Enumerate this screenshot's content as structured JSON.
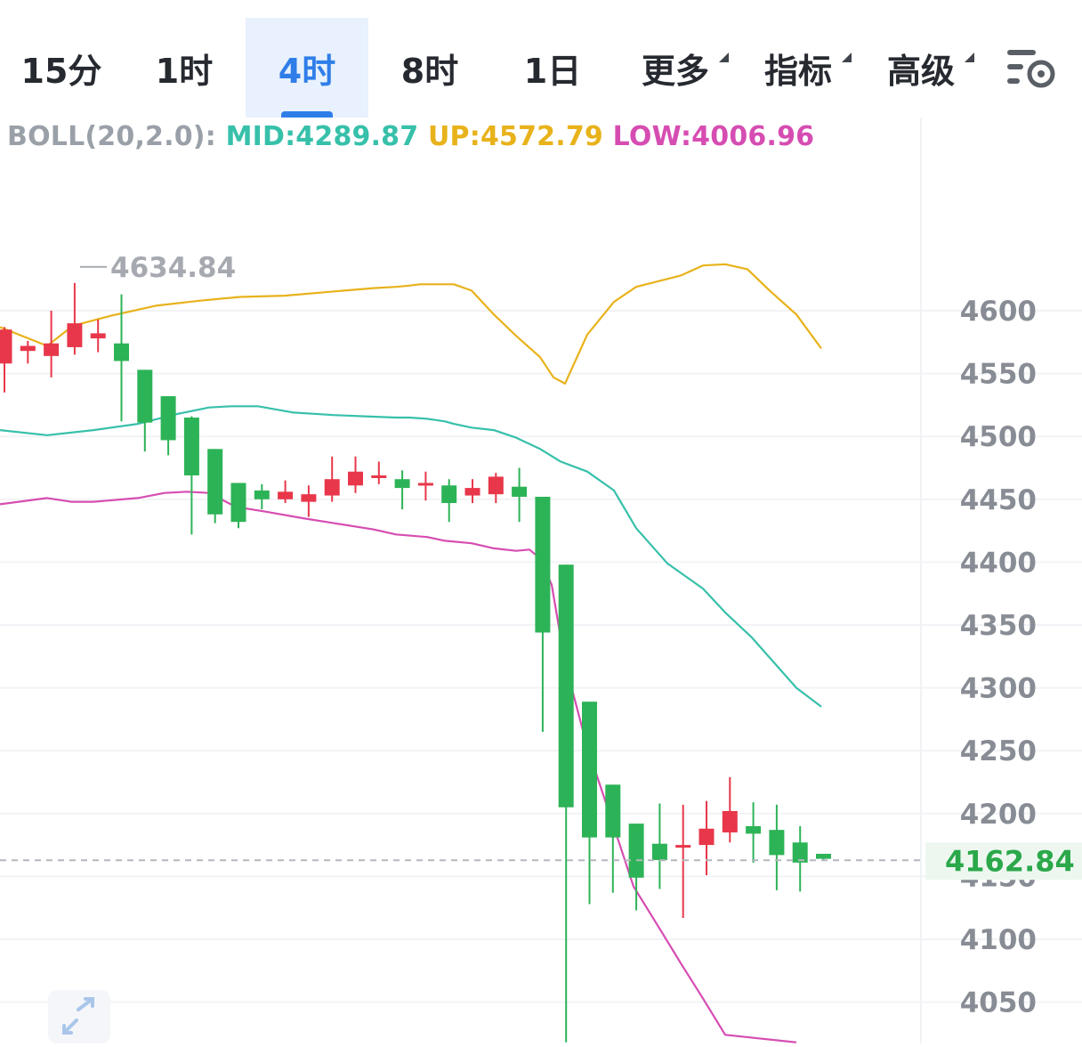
{
  "toolbar": {
    "tabs": [
      {
        "label": "15分",
        "active": false
      },
      {
        "label": "1时",
        "active": false
      },
      {
        "label": "4时",
        "active": true
      },
      {
        "label": "8时",
        "active": false
      },
      {
        "label": "1日",
        "active": false
      },
      {
        "label": "更多",
        "active": false,
        "dropdown": true
      },
      {
        "label": "指标",
        "active": false,
        "dropdown": true
      },
      {
        "label": "高级",
        "active": false,
        "dropdown": true
      }
    ],
    "settings_icon": "chart-settings-icon"
  },
  "legend": {
    "indicator": "BOLL(20,2.0):",
    "mid": "MID:4289.87",
    "up": "UP:4572.79",
    "low": "LOW:4006.96"
  },
  "colors": {
    "rise": "#e8374a",
    "fall": "#2db357",
    "mid": "#37c0aa",
    "up": "#e8b21b",
    "low": "#d64db2",
    "active_tab": "#2f7ee8"
  },
  "chart_data": {
    "type": "candlestick",
    "indicator": "BOLL(20,2.0)",
    "y_ticks": [
      "4600",
      "4550",
      "4500",
      "4450",
      "4400",
      "4350",
      "4300",
      "4250",
      "4200",
      "4150",
      "4100",
      "4050"
    ],
    "ylim": [
      4018,
      4685
    ],
    "max_label": "4634.84",
    "current_price": "4162.84",
    "candles": [
      {
        "o": 4558,
        "h": 4587,
        "l": 4535,
        "c": 4585
      },
      {
        "o": 4568,
        "h": 4576,
        "l": 4558,
        "c": 4572
      },
      {
        "o": 4564,
        "h": 4600,
        "l": 4547,
        "c": 4574
      },
      {
        "o": 4571,
        "h": 4622,
        "l": 4565,
        "c": 4590
      },
      {
        "o": 4578,
        "h": 4593,
        "l": 4567,
        "c": 4582
      },
      {
        "o": 4574,
        "h": 4613,
        "l": 4512,
        "c": 4560
      },
      {
        "o": 4553,
        "h": 4553,
        "l": 4488,
        "c": 4511
      },
      {
        "o": 4532,
        "h": 4532,
        "l": 4485,
        "c": 4497
      },
      {
        "o": 4515,
        "h": 4516,
        "l": 4422,
        "c": 4469
      },
      {
        "o": 4490,
        "h": 4490,
        "l": 4431,
        "c": 4438
      },
      {
        "o": 4463,
        "h": 4463,
        "l": 4427,
        "c": 4432
      },
      {
        "o": 4457,
        "h": 4462,
        "l": 4442,
        "c": 4450
      },
      {
        "o": 4450,
        "h": 4465,
        "l": 4447,
        "c": 4456
      },
      {
        "o": 4448,
        "h": 4461,
        "l": 4436,
        "c": 4454
      },
      {
        "o": 4453,
        "h": 4484,
        "l": 4448,
        "c": 4466
      },
      {
        "o": 4461,
        "h": 4484,
        "l": 4455,
        "c": 4472
      },
      {
        "o": 4468,
        "h": 4480,
        "l": 4462,
        "c": 4469
      },
      {
        "o": 4466,
        "h": 4473,
        "l": 4442,
        "c": 4459
      },
      {
        "o": 4462,
        "h": 4472,
        "l": 4449,
        "c": 4463
      },
      {
        "o": 4461,
        "h": 4466,
        "l": 4432,
        "c": 4447
      },
      {
        "o": 4453,
        "h": 4466,
        "l": 4447,
        "c": 4459
      },
      {
        "o": 4454,
        "h": 4471,
        "l": 4447,
        "c": 4468
      },
      {
        "o": 4460,
        "h": 4475,
        "l": 4432,
        "c": 4452
      },
      {
        "o": 4452,
        "h": 4452,
        "l": 4265,
        "c": 4344
      },
      {
        "o": 4398,
        "h": 4398,
        "l": 4018,
        "c": 4205
      },
      {
        "o": 4289,
        "h": 4289,
        "l": 4128,
        "c": 4181
      },
      {
        "o": 4223,
        "h": 4223,
        "l": 4137,
        "c": 4181
      },
      {
        "o": 4192,
        "h": 4192,
        "l": 4123,
        "c": 4149
      },
      {
        "o": 4176,
        "h": 4208,
        "l": 4140,
        "c": 4163
      },
      {
        "o": 4173,
        "h": 4207,
        "l": 4117,
        "c": 4175
      },
      {
        "o": 4175,
        "h": 4210,
        "l": 4151,
        "c": 4188
      },
      {
        "o": 4185,
        "h": 4229,
        "l": 4177,
        "c": 4202
      },
      {
        "o": 4190,
        "h": 4209,
        "l": 4161,
        "c": 4184
      },
      {
        "o": 4187,
        "h": 4207,
        "l": 4139,
        "c": 4167
      },
      {
        "o": 4177,
        "h": 4190,
        "l": 4138,
        "c": 4161
      },
      {
        "o": 4168,
        "h": 4168,
        "l": 4163,
        "c": 4164
      }
    ],
    "boll_up": [
      4587,
      4572,
      4588,
      4596,
      4604,
      4608,
      4611,
      4612,
      4615,
      4618,
      4619,
      4620,
      4621,
      4621,
      4621,
      4621,
      4621,
      4621,
      4616,
      4597,
      4580,
      4563,
      4547,
      4542,
      4581,
      4607,
      4619,
      4628,
      4636,
      4637,
      4633,
      4616,
      4597,
      4570
    ],
    "boll_mid": [
      4505,
      4501,
      4505,
      4510,
      4518,
      4523,
      4524,
      4524,
      4519,
      4517,
      4516,
      4515,
      4515,
      4514,
      4513,
      4512,
      4510,
      4507,
      4505,
      4499,
      4490,
      4480,
      4472,
      4457,
      4427,
      4399,
      4379,
      4360,
      4340,
      4320,
      4300,
      4285
    ],
    "boll_low": [
      4446,
      4451,
      4448,
      4448,
      4451,
      4455,
      4456,
      4455,
      4444,
      4440,
      4435,
      4431,
      4426,
      4422,
      4420,
      4417,
      4415,
      4411,
      4409,
      4410,
      4403,
      4382,
      4320,
      4253,
      4200,
      4142,
      4110,
      4081,
      4053,
      4024,
      4018
    ],
    "boll_up_x": [
      0,
      53,
      82,
      125,
      175,
      225,
      270,
      320,
      370,
      420,
      445,
      460,
      472,
      480,
      490,
      495,
      503,
      510,
      530,
      555,
      580,
      607,
      622,
      635,
      660,
      690,
      715,
      765,
      790,
      815,
      840,
      865,
      895,
      923
    ],
    "boll_mid_x": [
      0,
      53,
      105,
      155,
      200,
      235,
      260,
      290,
      330,
      375,
      410,
      445,
      460,
      480,
      490,
      500,
      510,
      530,
      555,
      580,
      607,
      630,
      660,
      690,
      715,
      750,
      790,
      815,
      845,
      870,
      895,
      923
    ],
    "boll_low_x": [
      0,
      53,
      80,
      105,
      155,
      185,
      210,
      235,
      265,
      300,
      340,
      375,
      420,
      445,
      480,
      500,
      530,
      555,
      580,
      595,
      607,
      620,
      635,
      660,
      685,
      712,
      740,
      765,
      790,
      815,
      895
    ]
  }
}
